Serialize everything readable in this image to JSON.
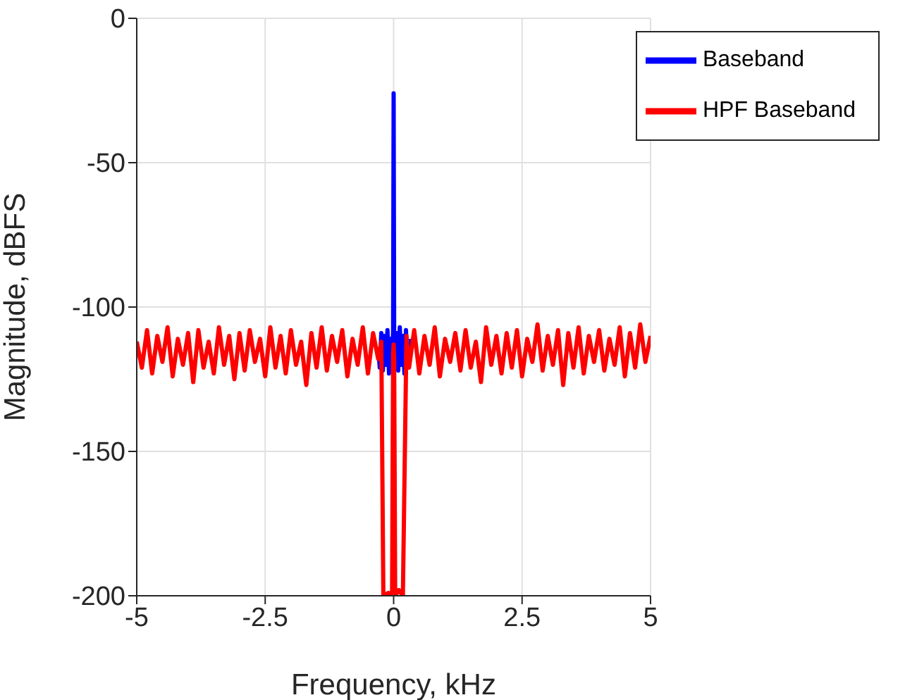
{
  "chart_data": {
    "type": "line",
    "xlabel": "Frequency, kHz",
    "ylabel": "Magnitude, dBFS",
    "xlim": [
      -5,
      5
    ],
    "xticks": [
      -5,
      -2.5,
      0,
      2.5,
      5
    ],
    "ylim": [
      -200,
      0
    ],
    "yticks": [
      -200,
      -150,
      -100,
      -50,
      0
    ],
    "grid": true,
    "legend": "top right",
    "line_style": "solid",
    "marker": "none",
    "series": [
      {
        "name": "Baseband",
        "color": "#0000ff",
        "x": [
          -0.3,
          -0.27,
          -0.24,
          -0.21,
          -0.18,
          -0.15,
          -0.12,
          -0.09,
          -0.06,
          -0.03,
          -0.01,
          0,
          0.01,
          0.03,
          0.06,
          0.09,
          0.12,
          0.15,
          0.18,
          0.21,
          0.24,
          0.27,
          0.3
        ],
        "values": [
          -114,
          -121,
          -109,
          -122,
          -110,
          -120,
          -108,
          -123,
          -111,
          -119,
          -108,
          -26,
          -110,
          -121,
          -109,
          -122,
          -107,
          -120,
          -110,
          -123,
          -108,
          -121,
          -111
        ]
      },
      {
        "name": "HPF Baseband",
        "color": "#ff0000",
        "x": [
          -5,
          -4.9,
          -4.8,
          -4.7,
          -4.6,
          -4.5,
          -4.4,
          -4.3,
          -4.2,
          -4.1,
          -4,
          -3.9,
          -3.8,
          -3.7,
          -3.6,
          -3.5,
          -3.4,
          -3.3,
          -3.2,
          -3.1,
          -3,
          -2.9,
          -2.8,
          -2.7,
          -2.6,
          -2.5,
          -2.4,
          -2.3,
          -2.2,
          -2.1,
          -2,
          -1.9,
          -1.8,
          -1.7,
          -1.6,
          -1.5,
          -1.4,
          -1.3,
          -1.2,
          -1.1,
          -1,
          -0.9,
          -0.8,
          -0.7,
          -0.6,
          -0.5,
          -0.4,
          -0.3,
          -0.24,
          -0.2,
          -0.1,
          -0.03,
          -0.01,
          0,
          0.01,
          0.03,
          0.1,
          0.18,
          0.25,
          0.3,
          0.4,
          0.5,
          0.6,
          0.7,
          0.8,
          0.9,
          1,
          1.1,
          1.2,
          1.3,
          1.4,
          1.5,
          1.6,
          1.7,
          1.8,
          1.9,
          2,
          2.1,
          2.2,
          2.3,
          2.4,
          2.5,
          2.6,
          2.7,
          2.8,
          2.9,
          3,
          3.1,
          3.2,
          3.3,
          3.4,
          3.5,
          3.6,
          3.7,
          3.8,
          3.9,
          4,
          4.1,
          4.2,
          4.3,
          4.4,
          4.5,
          4.6,
          4.7,
          4.8,
          4.9,
          5
        ],
        "values": [
          -112,
          -121,
          -108,
          -123,
          -110,
          -119,
          -107,
          -124,
          -111,
          -120,
          -109,
          -126,
          -108,
          -121,
          -112,
          -123,
          -107,
          -120,
          -110,
          -125,
          -109,
          -122,
          -108,
          -119,
          -111,
          -124,
          -107,
          -121,
          -110,
          -123,
          -108,
          -120,
          -112,
          -127,
          -109,
          -121,
          -107,
          -122,
          -110,
          -119,
          -108,
          -124,
          -111,
          -120,
          -107,
          -123,
          -109,
          -118,
          -112,
          -200,
          -199,
          -200,
          -116,
          -113,
          -118,
          -200,
          -198,
          -200,
          -110,
          -121,
          -108,
          -123,
          -110,
          -120,
          -107,
          -124,
          -111,
          -119,
          -109,
          -122,
          -108,
          -121,
          -112,
          -126,
          -107,
          -120,
          -110,
          -123,
          -109,
          -121,
          -108,
          -124,
          -111,
          -119,
          -106,
          -122,
          -110,
          -120,
          -108,
          -127,
          -109,
          -121,
          -107,
          -123,
          -110,
          -119,
          -108,
          -122,
          -111,
          -120,
          -107,
          -124,
          -109,
          -121,
          -106,
          -119,
          -110
        ]
      }
    ]
  }
}
